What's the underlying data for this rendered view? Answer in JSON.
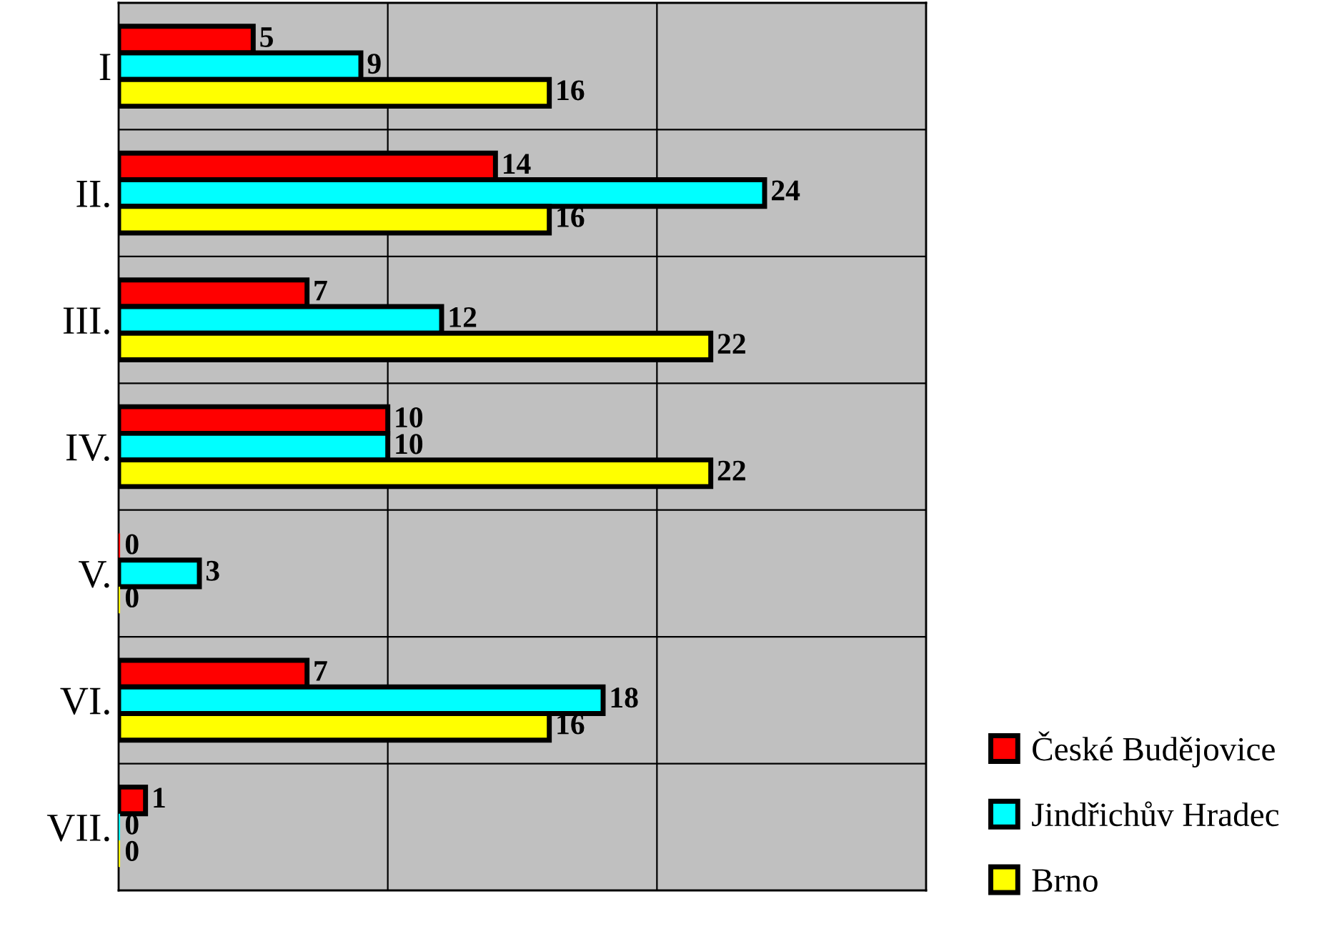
{
  "chart_data": {
    "type": "bar",
    "orientation": "horizontal",
    "categories": [
      "I",
      "II.",
      "III.",
      "IV.",
      "V.",
      "VI.",
      "VII."
    ],
    "series": [
      {
        "name": "České Budějovice",
        "color": "#ff0000",
        "values": [
          5,
          14,
          7,
          10,
          0,
          7,
          1
        ]
      },
      {
        "name": "Jindřichův Hradec",
        "color": "#00ffff",
        "values": [
          9,
          24,
          12,
          10,
          3,
          18,
          0
        ]
      },
      {
        "name": "Brno",
        "color": "#ffff00",
        "values": [
          16,
          16,
          22,
          22,
          0,
          16,
          0
        ]
      }
    ],
    "xlim": [
      0,
      30
    ],
    "xticks": [
      {
        "value": 10,
        "label": null
      },
      {
        "value": 20,
        "label": null
      },
      {
        "value": 30,
        "label": null
      }
    ],
    "tick_labels": "y",
    "grid": true,
    "data_labels": true,
    "legend": "bottom right"
  }
}
